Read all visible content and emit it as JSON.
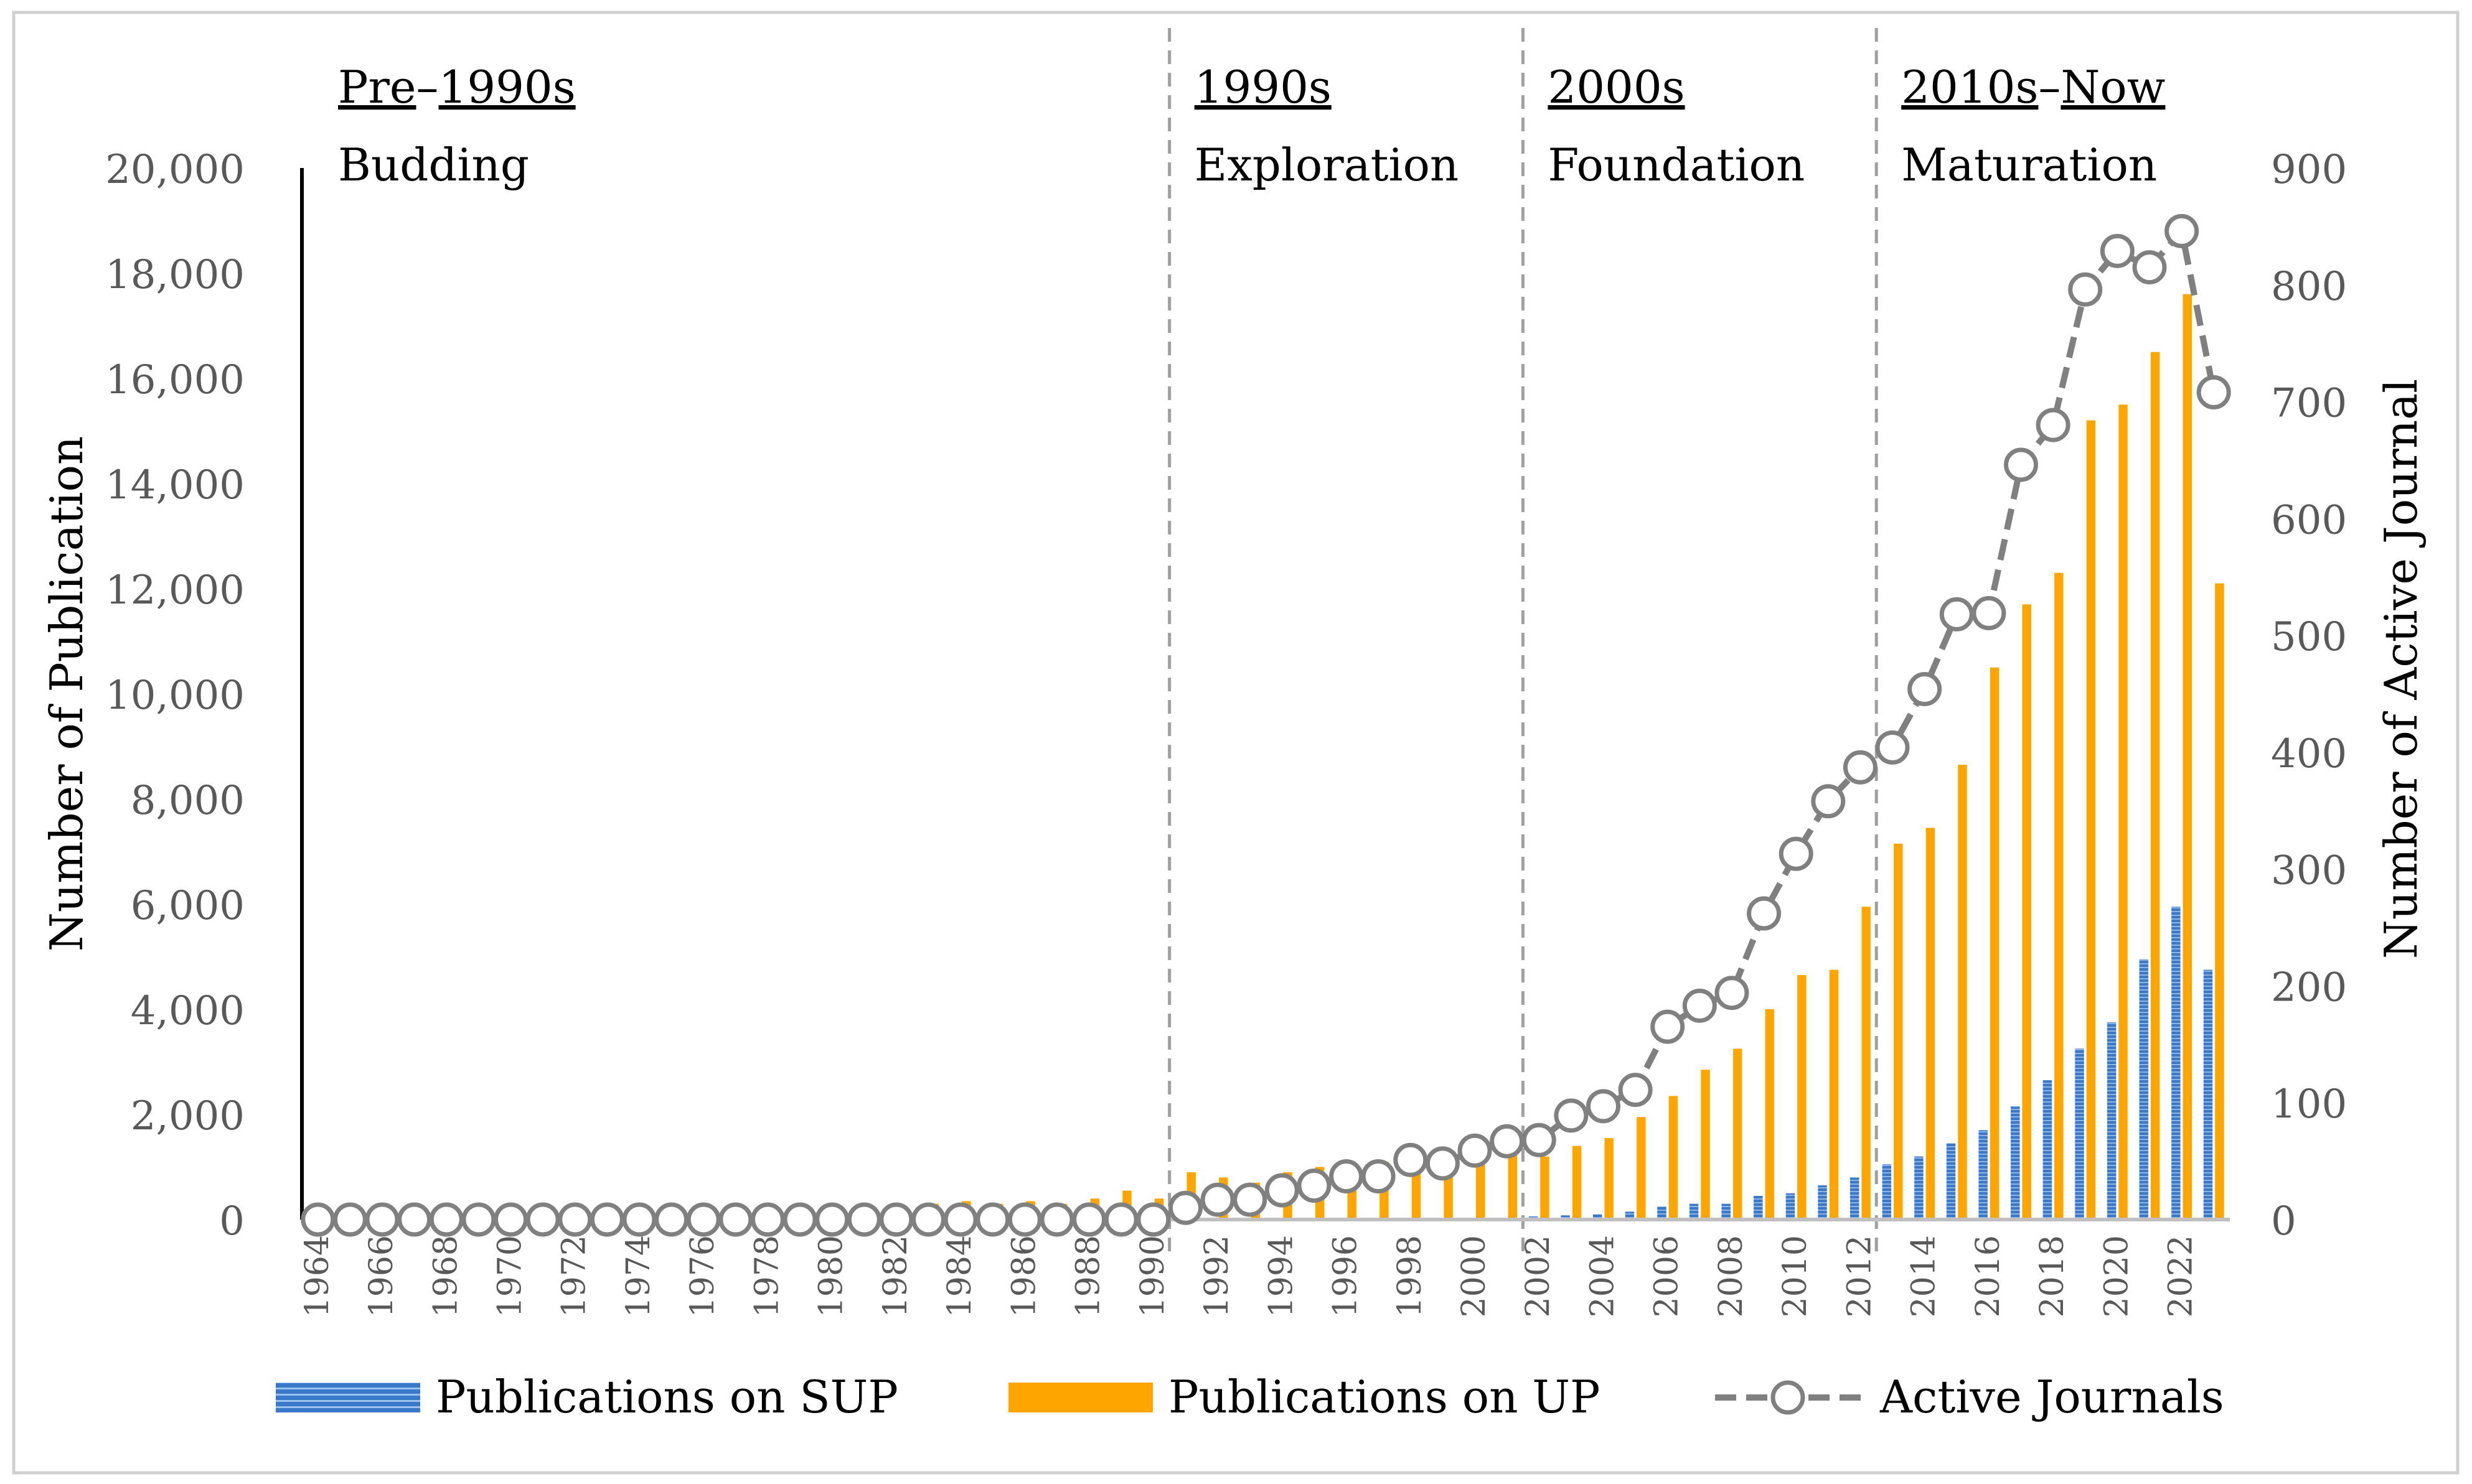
{
  "chart_data": {
    "type": "bar",
    "x": [
      1964,
      1965,
      1966,
      1967,
      1968,
      1969,
      1970,
      1971,
      1972,
      1973,
      1974,
      1975,
      1976,
      1977,
      1978,
      1979,
      1980,
      1981,
      1982,
      1983,
      1984,
      1985,
      1986,
      1987,
      1988,
      1989,
      1990,
      1991,
      1992,
      1993,
      1994,
      1995,
      1996,
      1997,
      1998,
      1999,
      2000,
      2001,
      2002,
      2003,
      2004,
      2005,
      2006,
      2007,
      2008,
      2009,
      2010,
      2011,
      2012,
      2013,
      2014,
      2015,
      2016,
      2017,
      2018,
      2019,
      2020,
      2021,
      2022,
      2023
    ],
    "x_tick_labels": [
      "1964",
      "1966",
      "1968",
      "1970",
      "1972",
      "1974",
      "1976",
      "1978",
      "1980",
      "1982",
      "1984",
      "1986",
      "1988",
      "1990",
      "1992",
      "1994",
      "1996",
      "1998",
      "2000",
      "2002",
      "2004",
      "2006",
      "2008",
      "2010",
      "2012",
      "2014",
      "2016",
      "2018",
      "2020",
      "2022"
    ],
    "series": [
      {
        "name": "Publications on SUP",
        "kind": "bar",
        "axis": "left",
        "color": "#3a78c9",
        "values": [
          0,
          0,
          0,
          0,
          0,
          0,
          0,
          0,
          0,
          0,
          0,
          0,
          0,
          0,
          0,
          0,
          0,
          0,
          0,
          0,
          0,
          0,
          0,
          0,
          0,
          0,
          0,
          0,
          0,
          0,
          0,
          0,
          0,
          0,
          0,
          0,
          0,
          0,
          60,
          80,
          100,
          150,
          250,
          300,
          300,
          450,
          500,
          650,
          800,
          1050,
          1200,
          1450,
          1700,
          2150,
          2650,
          3250,
          3750,
          4950,
          5950,
          4750
        ]
      },
      {
        "name": "Publications on UP",
        "kind": "bar",
        "axis": "left",
        "color": "#ffa500",
        "values": [
          0,
          0,
          0,
          0,
          0,
          0,
          0,
          0,
          0,
          0,
          0,
          0,
          0,
          0,
          0,
          0,
          0,
          0,
          50,
          300,
          350,
          300,
          350,
          300,
          400,
          550,
          400,
          900,
          800,
          700,
          900,
          1000,
          800,
          1100,
          1000,
          850,
          1200,
          1300,
          1200,
          1400,
          1550,
          1950,
          2350,
          2850,
          3250,
          4000,
          4650,
          4750,
          5950,
          7150,
          7450,
          8650,
          10500,
          11700,
          12300,
          15200,
          15500,
          16500,
          17600,
          12100
        ]
      },
      {
        "name": "Active Journals",
        "kind": "line",
        "axis": "right",
        "color": "#808080",
        "values": [
          0,
          0,
          0,
          0,
          0,
          0,
          0,
          0,
          0,
          0,
          0,
          0,
          0,
          0,
          0,
          0,
          0,
          0,
          0,
          0,
          0,
          0,
          0,
          0,
          0,
          0,
          0,
          10,
          17,
          17,
          25,
          29,
          37,
          37,
          51,
          48,
          59,
          67,
          68,
          89,
          97,
          111,
          165,
          183,
          194,
          262,
          313,
          358,
          387,
          404,
          454,
          518,
          519,
          646,
          680,
          796,
          829,
          815,
          846,
          708
        ]
      }
    ],
    "y_left": {
      "label": "Number of Publication",
      "ylim": [
        0,
        20000
      ],
      "ticks": [
        "0",
        "2,000",
        "4,000",
        "6,000",
        "8,000",
        "10,000",
        "12,000",
        "14,000",
        "16,000",
        "18,000",
        "20,000"
      ]
    },
    "y_right": {
      "label": "Number of  Active Journal",
      "ylim": [
        0,
        900
      ],
      "ticks": [
        "0",
        "100",
        "200",
        "300",
        "400",
        "500",
        "600",
        "700",
        "800",
        "900"
      ]
    },
    "eras": [
      {
        "name": "Pre-1990s",
        "name_parts": [
          "Pre",
          "–",
          "1990s"
        ],
        "subtitle": "Budding",
        "start_year": 1964
      },
      {
        "name": "1990s",
        "name_parts": [
          "1990s"
        ],
        "subtitle": "Exploration",
        "start_year": 1990.5
      },
      {
        "name": "2000s",
        "name_parts": [
          "2000s"
        ],
        "subtitle": "Foundation",
        "start_year": 2001.5
      },
      {
        "name": "2010s-Now",
        "name_parts": [
          "2010s",
          "–",
          "Now"
        ],
        "subtitle": "Maturation",
        "start_year": 2012.5
      }
    ],
    "legend_position": "bottom",
    "grid": false
  }
}
